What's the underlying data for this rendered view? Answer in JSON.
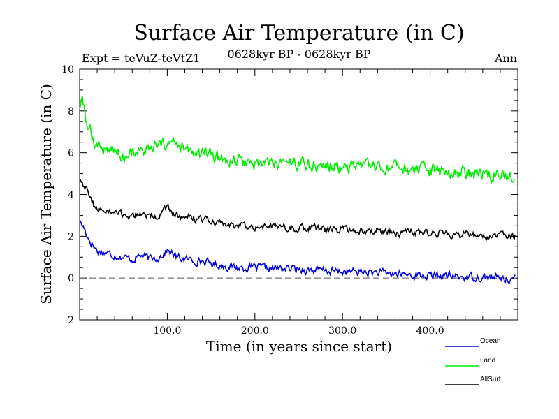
{
  "header": {
    "expt": "Expt = teVuZ-teVtZ1",
    "period": "0628kyr BP - 0628kyr BP",
    "season": "Ann"
  },
  "chart_data": {
    "type": "line",
    "title": "Surface Air Temperature (in C)",
    "xlabel": "Time (in years since start)",
    "ylabel": "Surface Air Temperature (in C)",
    "xlim": [
      0,
      500
    ],
    "ylim": [
      -2,
      10
    ],
    "xticks": [
      100,
      200,
      300,
      400
    ],
    "xtick_labels": [
      "100.0",
      "200.0",
      "300.0",
      "400.0"
    ],
    "yticks": [
      -2,
      0,
      2,
      4,
      6,
      8,
      10
    ],
    "ytick_labels": [
      "-2",
      "0",
      "2",
      "4",
      "6",
      "8",
      "10"
    ],
    "zero_line": "dashed",
    "grid": false,
    "legend_position": "bottom-right, below plot",
    "series": [
      {
        "name": "Ocean",
        "color": "#0000dd",
        "points": [
          [
            0,
            2.7
          ],
          [
            5,
            2.4
          ],
          [
            10,
            1.9
          ],
          [
            15,
            1.6
          ],
          [
            20,
            1.3
          ],
          [
            30,
            1.2
          ],
          [
            40,
            1.1
          ],
          [
            50,
            1.0
          ],
          [
            60,
            0.9
          ],
          [
            70,
            1.1
          ],
          [
            80,
            0.9
          ],
          [
            90,
            1.0
          ],
          [
            100,
            1.3
          ],
          [
            105,
            1.2
          ],
          [
            110,
            1.0
          ],
          [
            120,
            0.9
          ],
          [
            140,
            0.8
          ],
          [
            160,
            0.6
          ],
          [
            180,
            0.5
          ],
          [
            200,
            0.5
          ],
          [
            220,
            0.45
          ],
          [
            240,
            0.45
          ],
          [
            260,
            0.4
          ],
          [
            280,
            0.35
          ],
          [
            300,
            0.3
          ],
          [
            320,
            0.3
          ],
          [
            340,
            0.25
          ],
          [
            360,
            0.2
          ],
          [
            380,
            0.15
          ],
          [
            400,
            0.1
          ],
          [
            420,
            0.1
          ],
          [
            440,
            0.05
          ],
          [
            460,
            0.05
          ],
          [
            480,
            0.0
          ],
          [
            497,
            -0.05
          ]
        ]
      },
      {
        "name": "Land",
        "color": "#00ee00",
        "points": [
          [
            0,
            8.2
          ],
          [
            3,
            8.4
          ],
          [
            8,
            7.5
          ],
          [
            12,
            7.0
          ],
          [
            18,
            6.5
          ],
          [
            25,
            6.2
          ],
          [
            35,
            6.2
          ],
          [
            45,
            6.0
          ],
          [
            55,
            5.8
          ],
          [
            65,
            6.2
          ],
          [
            75,
            6.0
          ],
          [
            85,
            6.2
          ],
          [
            95,
            6.3
          ],
          [
            100,
            6.5
          ],
          [
            110,
            6.3
          ],
          [
            120,
            6.1
          ],
          [
            135,
            5.9
          ],
          [
            150,
            5.8
          ],
          [
            170,
            5.6
          ],
          [
            190,
            5.5
          ],
          [
            210,
            5.5
          ],
          [
            230,
            5.5
          ],
          [
            250,
            5.5
          ],
          [
            270,
            5.4
          ],
          [
            290,
            5.3
          ],
          [
            310,
            5.3
          ],
          [
            330,
            5.3
          ],
          [
            350,
            5.2
          ],
          [
            370,
            5.2
          ],
          [
            390,
            5.1
          ],
          [
            410,
            5.1
          ],
          [
            430,
            5.0
          ],
          [
            450,
            5.0
          ],
          [
            470,
            4.9
          ],
          [
            485,
            4.85
          ],
          [
            497,
            4.8
          ]
        ]
      },
      {
        "name": "AllSurf",
        "color": "#000000",
        "points": [
          [
            0,
            4.8
          ],
          [
            5,
            4.5
          ],
          [
            10,
            4.0
          ],
          [
            15,
            3.6
          ],
          [
            20,
            3.3
          ],
          [
            30,
            3.2
          ],
          [
            40,
            3.1
          ],
          [
            50,
            3.0
          ],
          [
            60,
            3.0
          ],
          [
            70,
            3.1
          ],
          [
            80,
            3.0
          ],
          [
            90,
            3.0
          ],
          [
            100,
            3.3
          ],
          [
            105,
            3.2
          ],
          [
            110,
            3.0
          ],
          [
            120,
            2.9
          ],
          [
            140,
            2.8
          ],
          [
            160,
            2.6
          ],
          [
            180,
            2.5
          ],
          [
            200,
            2.5
          ],
          [
            220,
            2.45
          ],
          [
            240,
            2.4
          ],
          [
            260,
            2.4
          ],
          [
            280,
            2.3
          ],
          [
            300,
            2.35
          ],
          [
            320,
            2.3
          ],
          [
            340,
            2.25
          ],
          [
            360,
            2.2
          ],
          [
            380,
            2.2
          ],
          [
            400,
            2.15
          ],
          [
            420,
            2.1
          ],
          [
            440,
            2.1
          ],
          [
            460,
            2.05
          ],
          [
            480,
            2.0
          ],
          [
            497,
            2.0
          ]
        ]
      }
    ]
  }
}
